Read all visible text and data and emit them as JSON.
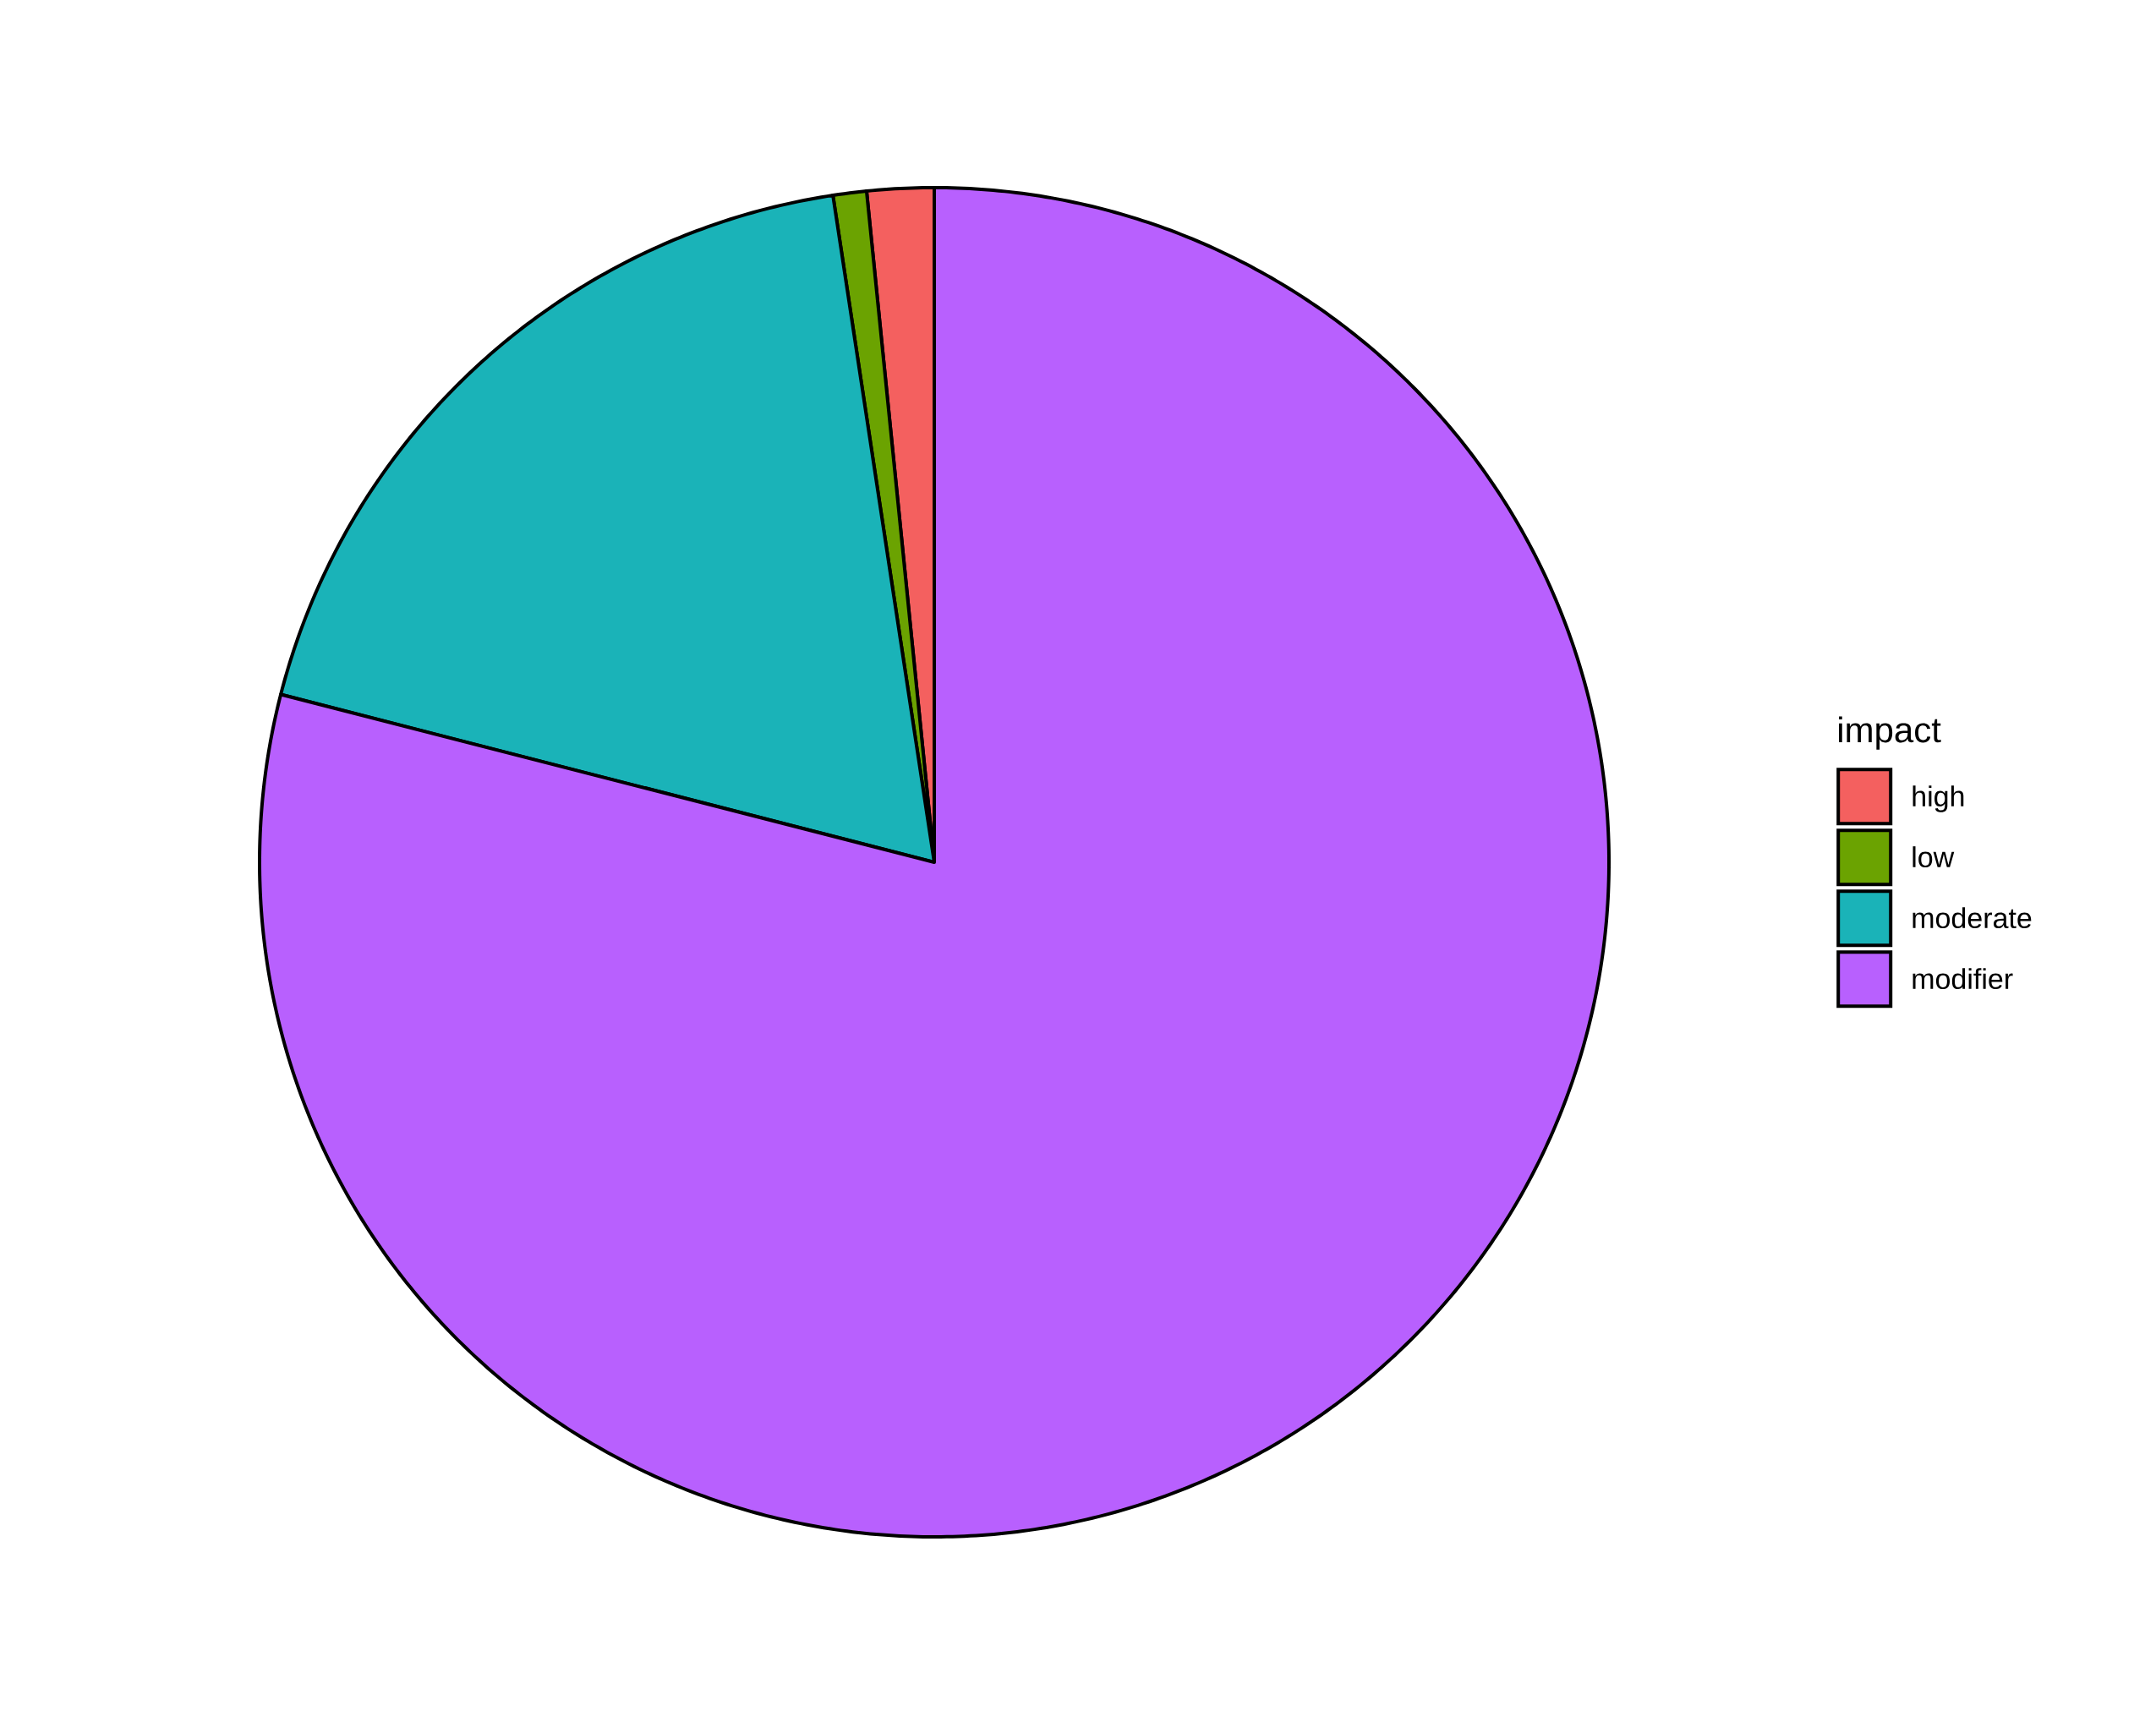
{
  "chart_data": {
    "type": "pie",
    "categories": [
      "high",
      "low",
      "moderate",
      "modifier"
    ],
    "values": [
      1.6,
      0.8,
      18.6,
      79.0
    ],
    "colors": [
      "#f4605f",
      "#6ba301",
      "#1ab3b8",
      "#b860fe"
    ],
    "legend_title": "impact",
    "legend": "right"
  }
}
